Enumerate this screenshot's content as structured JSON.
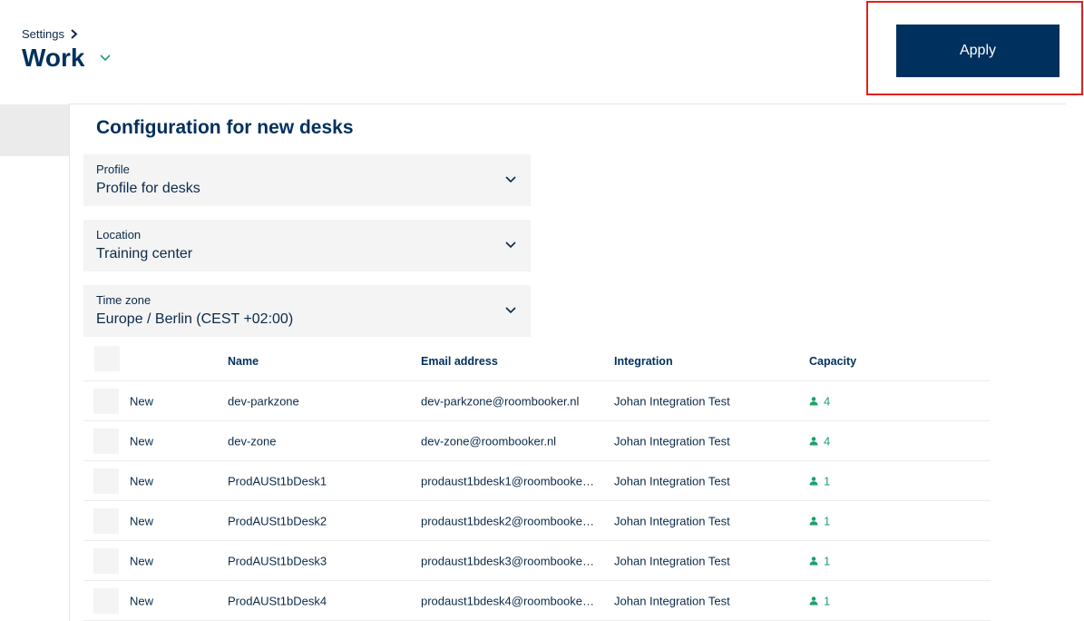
{
  "header": {
    "breadcrumb": "Settings",
    "title": "Work",
    "apply_label": "Apply"
  },
  "colors": {
    "navy": "#00305e",
    "accent_green": "#1aa36b",
    "highlight": "#e02020"
  },
  "section_title": "Configuration for new desks",
  "fields": [
    {
      "label": "Profile",
      "value": "Profile for desks"
    },
    {
      "label": "Location",
      "value": "Training center"
    },
    {
      "label": "Time zone",
      "value": "Europe / Berlin (CEST +02:00)"
    }
  ],
  "table": {
    "columns": [
      "Name",
      "Email address",
      "Integration",
      "Capacity"
    ],
    "rows": [
      {
        "status": "New",
        "name": "dev-parkzone",
        "email": "dev-parkzone@roombooker.nl",
        "integration": "Johan Integration Test",
        "capacity": "4"
      },
      {
        "status": "New",
        "name": "dev-zone",
        "email": "dev-zone@roombooker.nl",
        "integration": "Johan Integration Test",
        "capacity": "4"
      },
      {
        "status": "New",
        "name": "ProdAUSt1bDesk1",
        "email": "prodaust1bdesk1@roombooker....",
        "integration": "Johan Integration Test",
        "capacity": "1"
      },
      {
        "status": "New",
        "name": "ProdAUSt1bDesk2",
        "email": "prodaust1bdesk2@roombooker....",
        "integration": "Johan Integration Test",
        "capacity": "1"
      },
      {
        "status": "New",
        "name": "ProdAUSt1bDesk3",
        "email": "prodaust1bdesk3@roombooker....",
        "integration": "Johan Integration Test",
        "capacity": "1"
      },
      {
        "status": "New",
        "name": "ProdAUSt1bDesk4",
        "email": "prodaust1bdesk4@roombooker....",
        "integration": "Johan Integration Test",
        "capacity": "1"
      }
    ]
  }
}
